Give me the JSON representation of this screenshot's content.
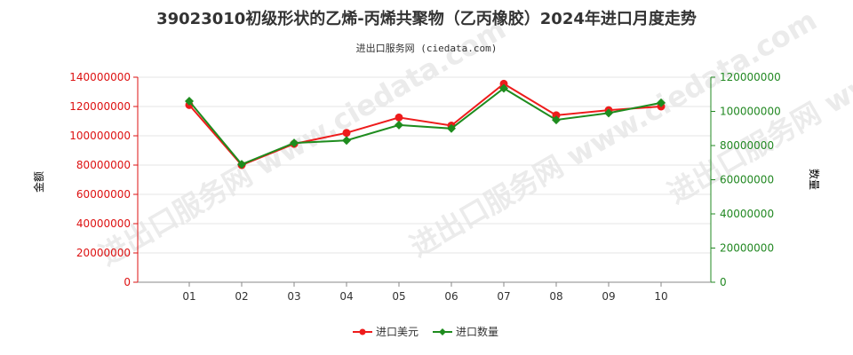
{
  "chart_data": {
    "type": "line",
    "title": "39023010初级形状的乙烯-丙烯共聚物（乙丙橡胶）2024年进口月度走势",
    "subtitle": "进出口服务网 (ciedata.com)",
    "watermark": "进出口服务网 www.ciedata.com",
    "categories": [
      "01",
      "02",
      "03",
      "04",
      "05",
      "06",
      "07",
      "08",
      "09",
      "10"
    ],
    "y_left": {
      "label": "金额",
      "range": [
        0,
        140000000
      ],
      "ticks": [
        "0",
        "20000000",
        "40000000",
        "60000000",
        "80000000",
        "100000000",
        "120000000",
        "140000000"
      ],
      "color": "#dd1111"
    },
    "y_right": {
      "label": "数量",
      "range": [
        0,
        120000000
      ],
      "ticks": [
        "0",
        "20000000",
        "40000000",
        "60000000",
        "80000000",
        "100000000",
        "120000000"
      ],
      "color": "#228822"
    },
    "series": [
      {
        "name": "进口美元",
        "axis": "left",
        "color": "#ee1c1c",
        "values": [
          121000000,
          80000000,
          94500000,
          102000000,
          112500000,
          107000000,
          135500000,
          114000000,
          117500000,
          120000000
        ]
      },
      {
        "name": "进口数量",
        "axis": "right",
        "color": "#1e8c1e",
        "values": [
          106000000,
          69000000,
          81500000,
          83000000,
          92000000,
          90000000,
          113500000,
          95000000,
          99000000,
          105000000
        ]
      }
    ],
    "grid": true,
    "legend": "bottom-center"
  }
}
